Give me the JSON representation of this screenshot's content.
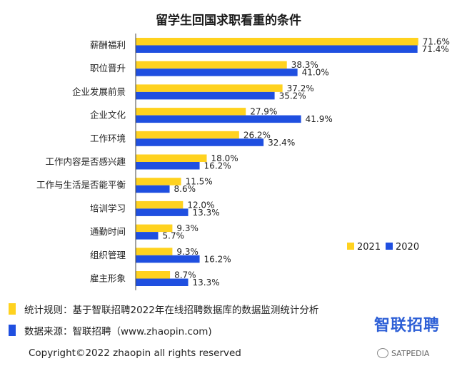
{
  "title": "留学生回国求职看重的条件",
  "colors": {
    "y2021": "#FFD21F",
    "y2020": "#1F4FE0"
  },
  "chart_data": {
    "type": "bar",
    "orientation": "horizontal",
    "title": "留学生回国求职看重的条件",
    "categories": [
      "薪酬福利",
      "职位晋升",
      "企业发展前景",
      "企业文化",
      "工作环境",
      "工作内容是否感兴趣",
      "工作与生活是否能平衡",
      "培训学习",
      "通勤时间",
      "组织管理",
      "雇主形象"
    ],
    "series": [
      {
        "name": "2021",
        "color": "#FFD21F",
        "values": [
          71.6,
          38.3,
          37.2,
          27.9,
          26.2,
          18.0,
          11.5,
          12.0,
          9.3,
          9.3,
          8.7
        ]
      },
      {
        "name": "2020",
        "color": "#1F4FE0",
        "values": [
          71.4,
          41.0,
          35.2,
          41.9,
          32.4,
          16.2,
          8.6,
          13.3,
          5.7,
          16.2,
          13.3
        ]
      }
    ],
    "value_format": "%",
    "xlim": [
      0,
      72
    ],
    "legend": {
      "position": "bottom-right",
      "entries": [
        "2021",
        "2020"
      ]
    },
    "grid": false
  },
  "notes": [
    {
      "text": "统计规则：基于智联招聘2022年在线招聘数据库的数据监测统计分析",
      "color": "#FFD21F"
    },
    {
      "text": "数据来源：智联招聘（www.zhaopin.com)",
      "color": "#1F4FE0"
    }
  ],
  "logo_text": "智联招聘",
  "footer": "Copyright©2022 zhaopin all rights reserved",
  "watermark": "SATPEDIA"
}
